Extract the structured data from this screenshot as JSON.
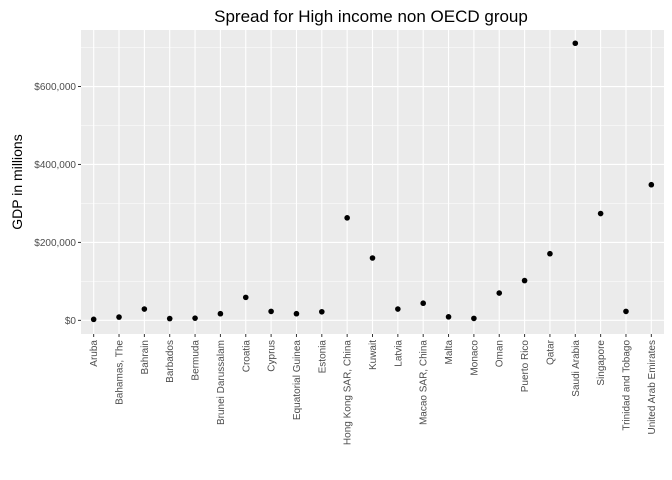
{
  "chart_data": {
    "type": "scatter",
    "title": "Spread for High income non OECD group",
    "xlabel": "",
    "ylabel": "GDP in millions",
    "yticks": [
      "$0",
      "$200,000",
      "$400,000",
      "$600,000"
    ],
    "ytick_values": [
      0,
      200000,
      400000,
      600000
    ],
    "ylim": [
      -35000,
      745000
    ],
    "grid": true,
    "legend": "none",
    "colors": {
      "panel": "#ebebeb",
      "grid": "#ffffff",
      "point": "#000000",
      "tick_text": "#4d4d4d"
    },
    "categories": [
      "Aruba",
      "Bahamas, The",
      "Bahrain",
      "Barbados",
      "Bermuda",
      "Brunei Darussalam",
      "Croatia",
      "Cyprus",
      "Equatorial Guinea",
      "Estonia",
      "Hong Kong SAR, China",
      "Kuwait",
      "Latvia",
      "Macao SAR, China",
      "Malta",
      "Monaco",
      "Oman",
      "Puerto Rico",
      "Qatar",
      "Saudi Arabia",
      "Singapore",
      "Trinidad and Tobago",
      "United Arab Emirates"
    ],
    "values": [
      2600,
      8400,
      29000,
      4500,
      5600,
      17000,
      59000,
      23000,
      17000,
      22000,
      263000,
      160000,
      29000,
      44000,
      9000,
      5000,
      70000,
      102000,
      171000,
      711000,
      274000,
      23000,
      348000
    ]
  }
}
